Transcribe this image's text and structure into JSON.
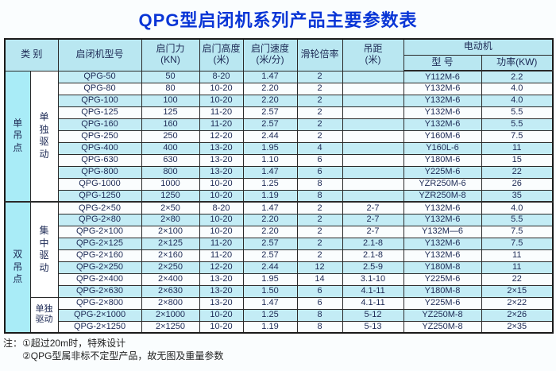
{
  "title": "QPG型启闭机系列产品主要参数表",
  "header": {
    "category": "类 别",
    "model": "启闭机型号",
    "force": "启门力\n(KN)",
    "height": "启门高度\n(米)",
    "speed": "启门速度\n(米/分)",
    "ratio": "滑轮倍率",
    "distance": "吊距\n(米)",
    "motor": "电动机",
    "motor_model": "型 号",
    "motor_power": "功率(KW)"
  },
  "sections": [
    {
      "group": "单吊点",
      "subgroups": [
        {
          "label": "单独驱动",
          "orientation": "vertical",
          "rows": [
            [
              "QPG-50",
              "50",
              "8-20",
              "1.47",
              "2",
              "",
              "Y112M-6",
              "2.2"
            ],
            [
              "QPG-80",
              "80",
              "10-20",
              "2.20",
              "2",
              "",
              "Y132M-6",
              "4.0"
            ],
            [
              "QPG-100",
              "100",
              "10-20",
              "2.20",
              "2",
              "",
              "Y132M-6",
              "4.0"
            ],
            [
              "QPG-125",
              "125",
              "11-20",
              "2.57",
              "2",
              "",
              "Y132M-6",
              "5.5"
            ],
            [
              "QPG-160",
              "160",
              "11-20",
              "2.57",
              "2",
              "",
              "Y132M-6",
              "5.5"
            ],
            [
              "QPG-250",
              "250",
              "12-20",
              "2.44",
              "2",
              "",
              "Y160M-6",
              "7.5"
            ],
            [
              "QPG-400",
              "400",
              "13-20",
              "1.95",
              "4",
              "",
              "Y160L-6",
              "11"
            ],
            [
              "QPG-630",
              "630",
              "13-20",
              "1.10",
              "6",
              "",
              "Y180M-6",
              "15"
            ],
            [
              "QPG-800",
              "800",
              "13-20",
              "1.47",
              "6",
              "",
              "Y225M-6",
              "22"
            ],
            [
              "QPG-1000",
              "1000",
              "10-20",
              "1.25",
              "8",
              "",
              "YZR250M-6",
              "26"
            ],
            [
              "QPG-1250",
              "1250",
              "10-20",
              "1.19",
              "8",
              "",
              "YZR250M-8",
              "35"
            ]
          ]
        }
      ]
    },
    {
      "group": "双吊点",
      "subgroups": [
        {
          "label": "集中驱动",
          "orientation": "vertical",
          "rows": [
            [
              "QPG-2×50",
              "2×50",
              "8-20",
              "1.47",
              "2",
              "2-7",
              "Y132M-6",
              "4.0"
            ],
            [
              "QPG-2×80",
              "2×80",
              "10-20",
              "2.20",
              "2",
              "2-7",
              "Y132M-6",
              "5.5"
            ],
            [
              "QPG-2×100",
              "2×100",
              "10-20",
              "2.20",
              "2",
              "2-7",
              "Y132M—6",
              "7.5"
            ],
            [
              "QPG-2×125",
              "2×125",
              "11-20",
              "2.57",
              "2",
              "2.1-8",
              "Y132M-6",
              "7.5"
            ],
            [
              "QPG-2×160",
              "2×160",
              "11-20",
              "2.57",
              "2",
              "2.1-8",
              "Y132M-6",
              "11"
            ],
            [
              "QPG-2×250",
              "2×250",
              "12-20",
              "2.44",
              "12",
              "2.5-9",
              "Y180M-8",
              "11"
            ],
            [
              "QPG-2×400",
              "2×400",
              "13-20",
              "1.95",
              "14",
              "3.1-10",
              "Y225M-6",
              "22"
            ],
            [
              "QPG-2×630",
              "2×630",
              "13-20",
              "1.50",
              "6",
              "4.1-11",
              "Y180M-8",
              "2×15"
            ]
          ]
        },
        {
          "label": "单独\n驱动",
          "orientation": "horizontal",
          "rows": [
            [
              "QPG-2×800",
              "2×800",
              "13-20",
              "1.47",
              "6",
              "4.1-11",
              "Y225M-6",
              "2×22"
            ],
            [
              "QPG-2×1000",
              "2×1000",
              "10-20",
              "1.25",
              "8",
              "5-12",
              "YZ250M-8",
              "2×26"
            ],
            [
              "QPG-2×1250",
              "2×1250",
              "10-20",
              "1.19",
              "8",
              "5-13",
              "YZ250M-8",
              "2×35"
            ]
          ]
        }
      ]
    }
  ],
  "notes": [
    "注：①超过20m时，特殊设计",
    "②QPG型属非标不定型产品，故无图及重量参数"
  ],
  "colors": {
    "title_blue": "#0935d6",
    "stripe_cyan": "#c3ecf5",
    "category_cyan": "#a9ecf7",
    "header_cyan": "#b9e7f1"
  }
}
